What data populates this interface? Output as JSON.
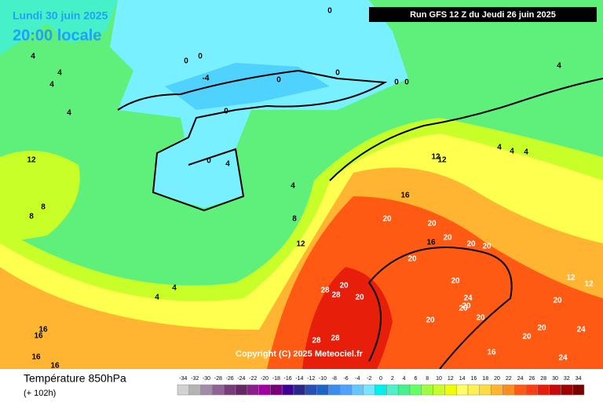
{
  "header": {
    "date": "Lundi 30 juin 2025",
    "time": "20:00 locale",
    "run": "Run GFS 12 Z du Jeudi 26 juin 2025"
  },
  "copyright": "Copyright (C) 2025 Meteociel.fr",
  "legend": {
    "title": "Température 850hPa",
    "subtitle": "(+ 102h)",
    "scale": [
      {
        "value": -34,
        "color": "#d2d2d2"
      },
      {
        "value": -32,
        "color": "#b4b4b4"
      },
      {
        "value": -30,
        "color": "#a08ca8"
      },
      {
        "value": -28,
        "color": "#8c6496"
      },
      {
        "value": -26,
        "color": "#783c78"
      },
      {
        "value": -24,
        "color": "#642864"
      },
      {
        "value": -22,
        "color": "#8c1e8c"
      },
      {
        "value": -20,
        "color": "#a000a0"
      },
      {
        "value": -18,
        "color": "#780078"
      },
      {
        "value": -16,
        "color": "#3c0096"
      },
      {
        "value": -14,
        "color": "#28288c"
      },
      {
        "value": -12,
        "color": "#2850b4"
      },
      {
        "value": -10,
        "color": "#1e64c8"
      },
      {
        "value": -8,
        "color": "#3c8cf0"
      },
      {
        "value": -6,
        "color": "#50a0ff"
      },
      {
        "value": -4,
        "color": "#64c8ff"
      },
      {
        "value": -2,
        "color": "#78e6ff"
      },
      {
        "value": 0,
        "color": "#00f0f0"
      },
      {
        "value": 2,
        "color": "#50f0c8"
      },
      {
        "value": 4,
        "color": "#46f08c"
      },
      {
        "value": 6,
        "color": "#64ff64"
      },
      {
        "value": 8,
        "color": "#a0ff3c"
      },
      {
        "value": 10,
        "color": "#c8ff28"
      },
      {
        "value": 12,
        "color": "#f0ff00"
      },
      {
        "value": 14,
        "color": "#ffff64"
      },
      {
        "value": 16,
        "color": "#fff050"
      },
      {
        "value": 18,
        "color": "#ffdc46"
      },
      {
        "value": 20,
        "color": "#ffb432"
      },
      {
        "value": 22,
        "color": "#ff8c1e"
      },
      {
        "value": 24,
        "color": "#ff5a14"
      },
      {
        "value": 26,
        "color": "#ff3c14"
      },
      {
        "value": 28,
        "color": "#e61e0a"
      },
      {
        "value": 30,
        "color": "#c80a0a"
      },
      {
        "value": 32,
        "color": "#a00000"
      },
      {
        "value": 34,
        "color": "#780000"
      }
    ]
  },
  "contour_labels": [
    "0",
    "0",
    "0",
    "-4",
    "0",
    "0",
    "0",
    "0",
    "0",
    "0",
    "4",
    "4",
    "4",
    "4",
    "4",
    "12",
    "8",
    "8",
    "4",
    "8",
    "12",
    "4",
    "4",
    "16",
    "16",
    "16",
    "16",
    "12",
    "12",
    "16",
    "20",
    "20",
    "20",
    "20",
    "20",
    "20",
    "16",
    "20",
    "20",
    "28",
    "28",
    "20",
    "24",
    "20",
    "20",
    "20",
    "28",
    "28",
    "20",
    "16",
    "20",
    "20",
    "24",
    "24",
    "20",
    "12",
    "12",
    "4",
    "4",
    "4",
    "4"
  ]
}
